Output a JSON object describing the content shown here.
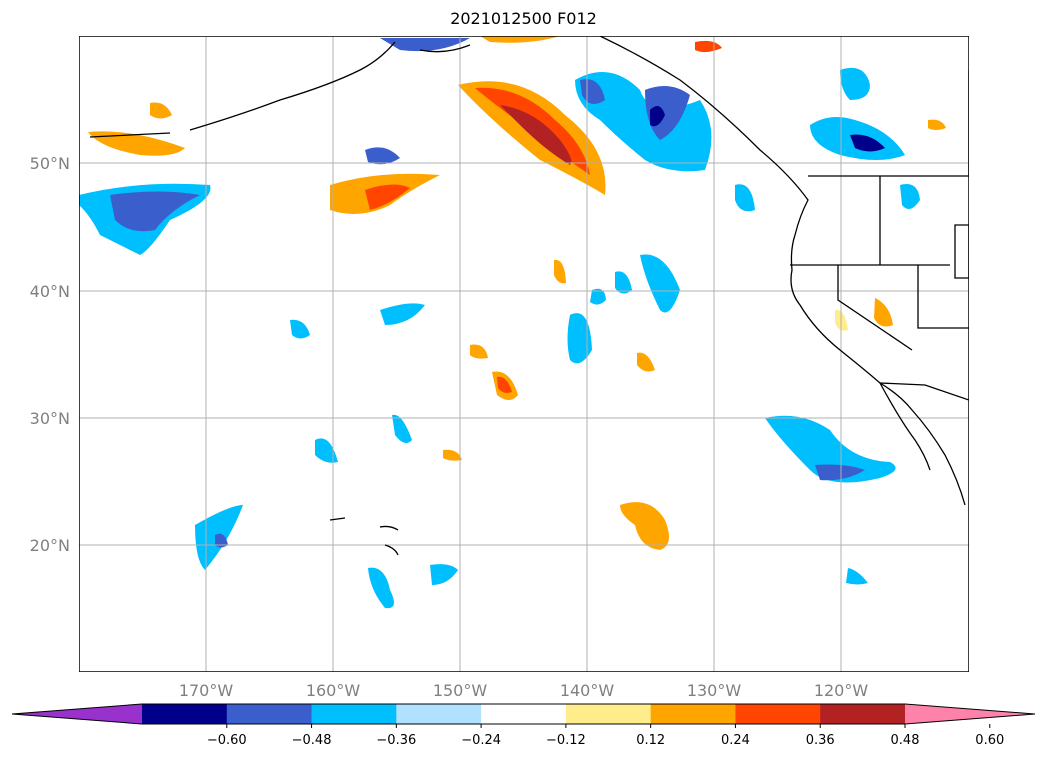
{
  "title": "2021012500 F012",
  "map": {
    "lat_range": [
      10,
      60
    ],
    "lon_range": [
      -180,
      -110
    ],
    "grid": true,
    "lat_labels": [
      "20°N",
      "30°N",
      "40°N",
      "50°N"
    ],
    "lon_labels": [
      "170°W",
      "160°W",
      "150°W",
      "140°W",
      "130°W",
      "120°W"
    ]
  },
  "colorbar": {
    "extend": "both",
    "colors": [
      "#9932cc",
      "#00008b",
      "#3a5fcd",
      "#00bfff",
      "#b0e2ff",
      "#ffffff",
      "#ffec8b",
      "#ffa500",
      "#ff4500",
      "#b22222",
      "#ff82ab"
    ],
    "tick_labels": [
      "−0.60",
      "−0.48",
      "−0.36",
      "−0.24",
      "−0.12",
      "0.12",
      "0.24",
      "0.36",
      "0.48",
      "0.60"
    ]
  }
}
